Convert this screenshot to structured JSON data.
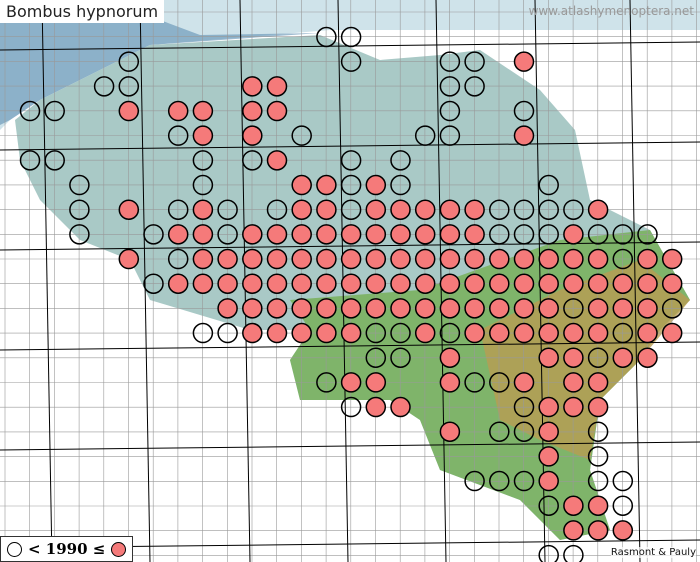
{
  "title": "Bombus hypnorum",
  "source_url": "www.atlashymenoptera.net",
  "legend": {
    "label": "< 1990 ≤"
  },
  "credit": "Rasmont & Pauly"
}
